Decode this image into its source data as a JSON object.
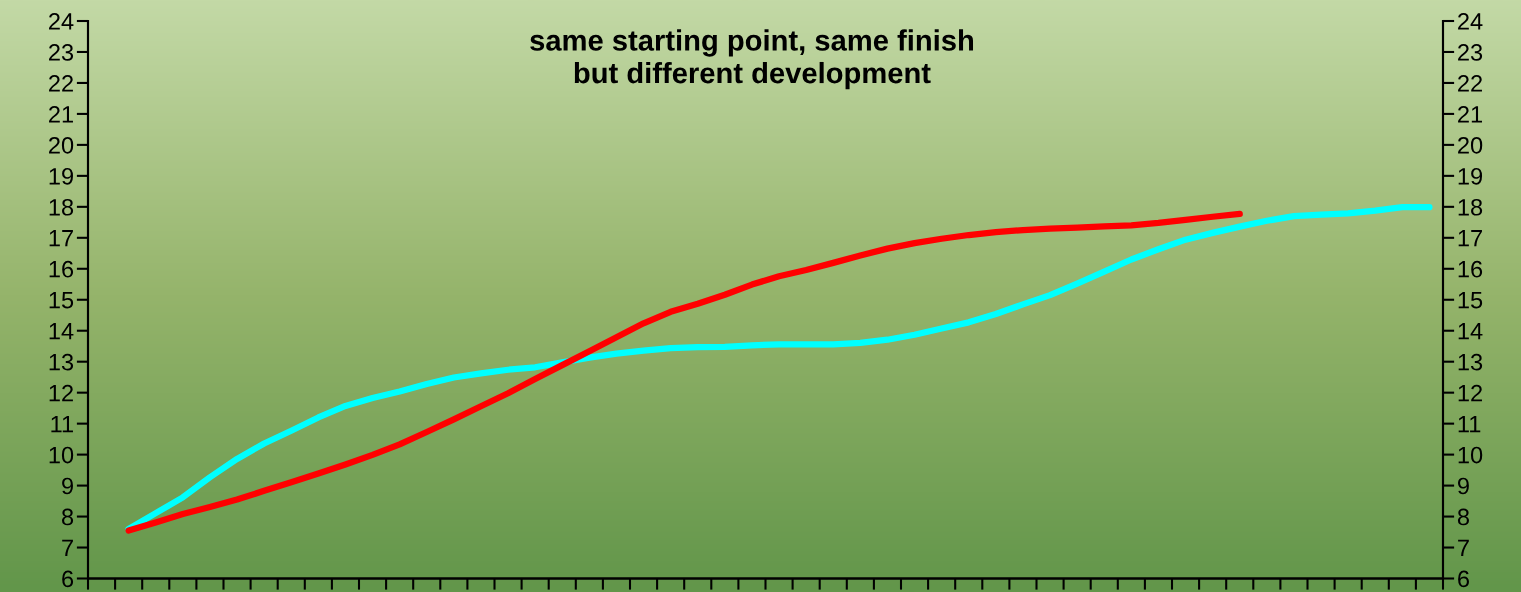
{
  "chart_data": {
    "type": "line",
    "title": "same starting point, same finish\nbut different development",
    "categories": [
      null,
      null,
      null,
      null,
      null,
      null,
      null,
      null,
      null,
      null,
      null,
      null,
      null,
      null,
      null,
      null,
      null,
      null,
      null,
      null,
      null,
      null,
      null,
      null,
      null,
      null,
      null,
      null,
      null,
      null,
      null,
      null,
      null,
      null,
      null,
      null,
      null,
      null,
      null,
      null,
      null,
      null,
      null,
      null,
      null,
      null,
      null,
      null,
      null,
      null
    ],
    "series": [
      {
        "color": "#00ffff",
        "values": [
          null,
          7.6,
          8.11,
          8.62,
          9.27,
          9.86,
          10.36,
          10.77,
          11.2,
          11.57,
          11.83,
          12.04,
          12.28,
          12.49,
          12.62,
          12.74,
          12.82,
          12.98,
          13.13,
          13.26,
          13.36,
          13.44,
          13.47,
          13.48,
          13.53,
          13.56,
          13.56,
          13.56,
          13.61,
          13.71,
          13.87,
          14.07,
          14.27,
          14.54,
          14.85,
          15.15,
          15.52,
          15.91,
          16.3,
          16.63,
          16.94,
          17.16,
          17.36,
          17.55,
          17.7,
          17.75,
          17.79,
          17.88,
          17.99,
          17.99
        ]
      },
      {
        "color": "#ff0000",
        "values": [
          null,
          7.55,
          7.81,
          8.08,
          8.31,
          8.55,
          8.83,
          9.11,
          9.39,
          9.68,
          9.99,
          10.33,
          10.73,
          11.14,
          11.56,
          11.98,
          12.44,
          12.89,
          13.34,
          13.79,
          14.24,
          14.61,
          14.87,
          15.16,
          15.49,
          15.76,
          15.96,
          16.19,
          16.43,
          16.65,
          16.83,
          16.97,
          17.09,
          17.18,
          17.25,
          17.3,
          17.33,
          17.37,
          17.4,
          17.48,
          17.58,
          17.68,
          17.77,
          null,
          null,
          null,
          null,
          null,
          null,
          null
        ]
      }
    ],
    "ylim": [
      6,
      24
    ],
    "yticks": [
      6,
      7,
      8,
      9,
      10,
      11,
      12,
      13,
      14,
      15,
      16,
      17,
      18,
      19,
      20,
      21,
      22,
      23,
      24
    ],
    "y2lim": [
      6,
      24
    ],
    "y2ticks": [
      6,
      7,
      8,
      9,
      10,
      11,
      12,
      13,
      14,
      15,
      16,
      17,
      18,
      19,
      20,
      21,
      22,
      23,
      24
    ],
    "tick_labels": "y",
    "grid": false,
    "marker": "none",
    "line_style": "solid"
  }
}
